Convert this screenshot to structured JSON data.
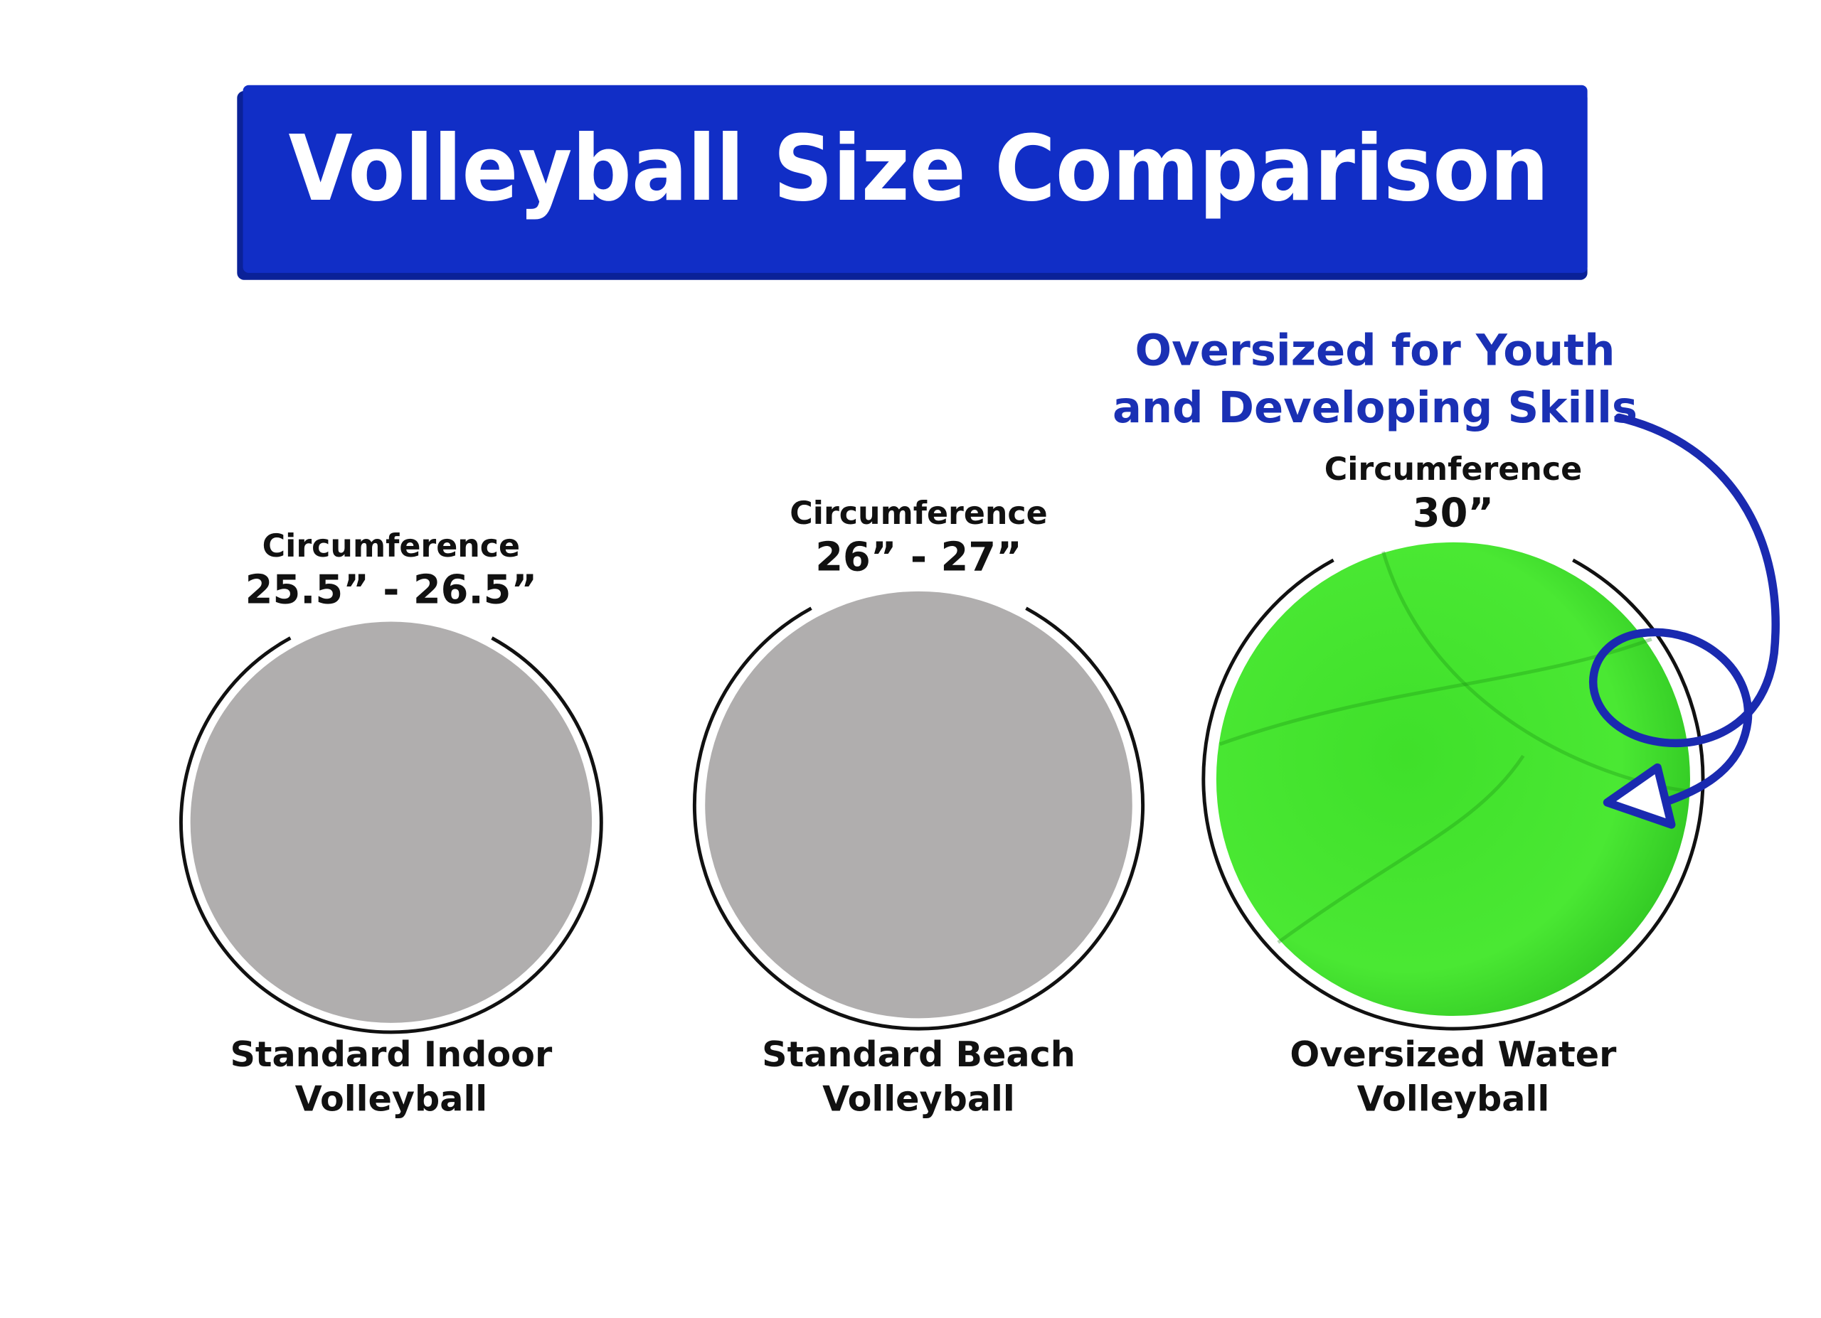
{
  "header": {
    "title": "Volleyball Size Comparison"
  },
  "callout": {
    "lines": [
      "Oversized for Youth",
      "and Developing Skills"
    ]
  },
  "balls": [
    {
      "measure_label": "Circumference",
      "measure": "25.5” - 26.5”",
      "name_lines": [
        "Standard Indoor",
        "Volleyball"
      ]
    },
    {
      "measure_label": "Circumference",
      "measure": "26” - 27”",
      "name_lines": [
        "Standard Beach",
        "Volleyball"
      ]
    },
    {
      "measure_label": "Circumference",
      "measure": "30”",
      "name_lines": [
        "Oversized Water",
        "Volleyball"
      ]
    }
  ]
}
